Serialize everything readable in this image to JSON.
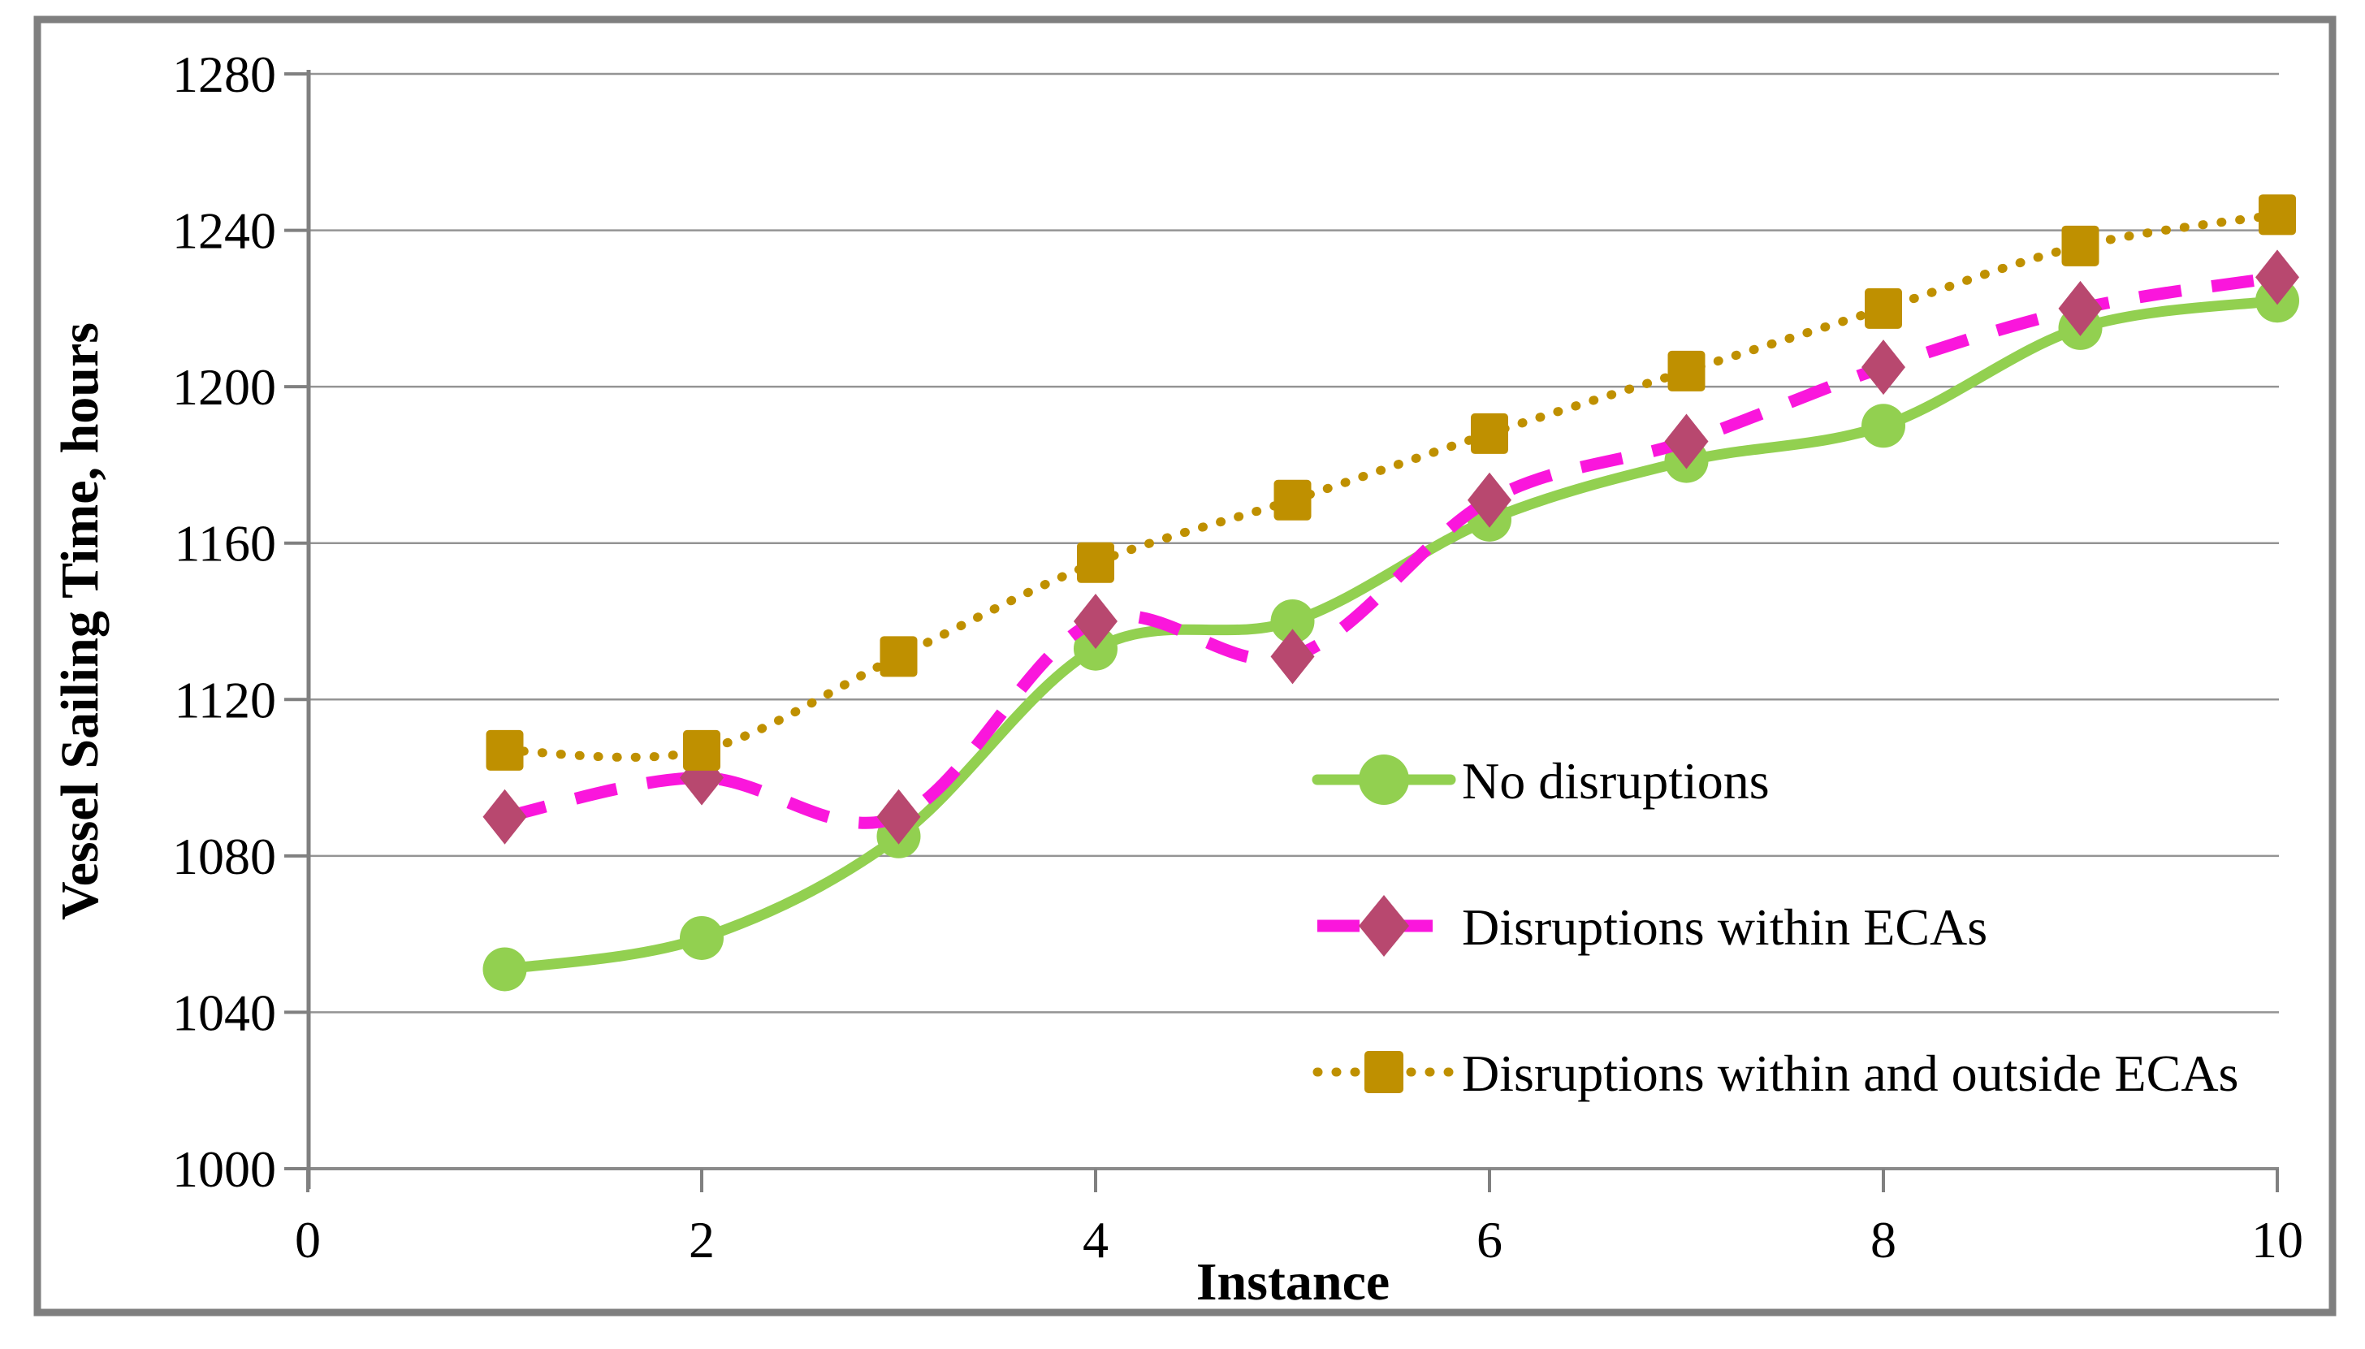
{
  "chart_data": {
    "type": "line",
    "title": "",
    "xlabel": "Instance",
    "ylabel": "Vessel Sailing Time, hours",
    "x": [
      1,
      2,
      3,
      4,
      5,
      6,
      7,
      8,
      9,
      10
    ],
    "xlim": [
      0,
      10
    ],
    "ylim": [
      1000,
      1280
    ],
    "x_ticks": [
      "0",
      "2",
      "4",
      "6",
      "8",
      "10"
    ],
    "y_ticks": [
      "1000",
      "1040",
      "1080",
      "1120",
      "1160",
      "1200",
      "1240",
      "1280"
    ],
    "grid": "horizontal gridlines only",
    "legend_position": "inside right, no border",
    "series": [
      {
        "name": "No disruptions",
        "marker": "circle",
        "line_style": "solid",
        "color": "#92d050",
        "marker_color": "#92d050",
        "values": [
          1051,
          1059,
          1085,
          1133,
          1140,
          1166,
          1181,
          1190,
          1215,
          1222
        ]
      },
      {
        "name": "Disruptions within ECAs",
        "marker": "diamond",
        "line_style": "dashed",
        "color": "#fa16dc",
        "marker_color": "#b8486f",
        "values": [
          1090,
          1100,
          1090,
          1140,
          1131,
          1171,
          1186,
          1205,
          1220,
          1228
        ]
      },
      {
        "name": "Disruptions within and outside ECAs",
        "marker": "square",
        "line_style": "dotted",
        "color": "#bf9000",
        "marker_color": "#bf9000",
        "values": [
          1107,
          1107,
          1131,
          1155,
          1171,
          1188,
          1204,
          1220,
          1236,
          1244
        ]
      }
    ],
    "colors": {
      "gridline": "#949494",
      "baseline": "#8a8a8a",
      "axis": "#808080",
      "frame": "#7f7f7f",
      "text": "#000000"
    }
  }
}
